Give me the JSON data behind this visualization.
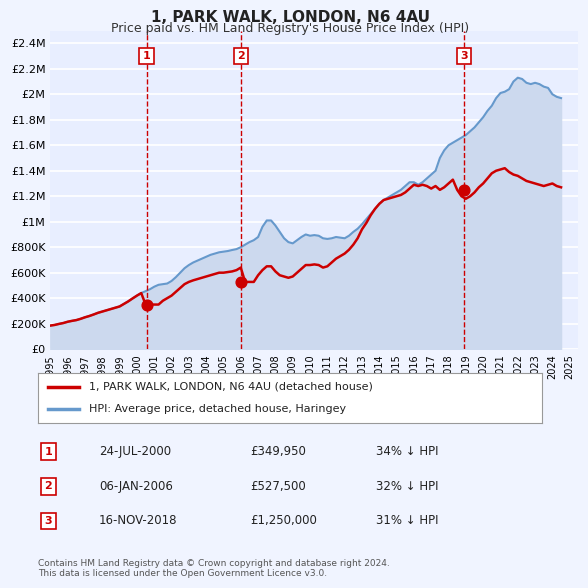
{
  "title": "1, PARK WALK, LONDON, N6 4AU",
  "subtitle": "Price paid vs. HM Land Registry's House Price Index (HPI)",
  "background_color": "#f0f4ff",
  "plot_bg_color": "#e8eeff",
  "grid_color": "#ffffff",
  "ylim": [
    0,
    2500000
  ],
  "yticks": [
    0,
    200000,
    400000,
    600000,
    800000,
    1000000,
    1200000,
    1400000,
    1600000,
    1800000,
    2000000,
    2200000,
    2400000
  ],
  "ytick_labels": [
    "£0",
    "£200K",
    "£400K",
    "£600K",
    "£800K",
    "£1M",
    "£1.2M",
    "£1.4M",
    "£1.6M",
    "£1.8M",
    "£2M",
    "£2.2M",
    "£2.4M"
  ],
  "xlim_start": 1995.5,
  "xlim_end": 2025.5,
  "sale_color": "#cc0000",
  "hpi_color": "#6699cc",
  "hpi_fill_color": "#ccd9ee",
  "sale_dates": [
    2000.558,
    2006.017,
    2018.879
  ],
  "sale_prices": [
    349950,
    527500,
    1250000
  ],
  "sale_labels": [
    "1",
    "2",
    "3"
  ],
  "vline_color": "#cc0000",
  "legend_label_sale": "1, PARK WALK, LONDON, N6 4AU (detached house)",
  "legend_label_hpi": "HPI: Average price, detached house, Haringey",
  "table_entries": [
    {
      "num": "1",
      "date": "24-JUL-2000",
      "price": "£349,950",
      "pct": "34% ↓ HPI"
    },
    {
      "num": "2",
      "date": "06-JAN-2006",
      "price": "£527,500",
      "pct": "32% ↓ HPI"
    },
    {
      "num": "3",
      "date": "16-NOV-2018",
      "price": "£1,250,000",
      "pct": "31% ↓ HPI"
    }
  ],
  "footnote": "Contains HM Land Registry data © Crown copyright and database right 2024.\nThis data is licensed under the Open Government Licence v3.0.",
  "hpi_years": [
    1995,
    1995.25,
    1995.5,
    1995.75,
    1996,
    1996.25,
    1996.5,
    1996.75,
    1997,
    1997.25,
    1997.5,
    1997.75,
    1998,
    1998.25,
    1998.5,
    1998.75,
    1999,
    1999.25,
    1999.5,
    1999.75,
    2000,
    2000.25,
    2000.5,
    2000.75,
    2001,
    2001.25,
    2001.5,
    2001.75,
    2002,
    2002.25,
    2002.5,
    2002.75,
    2003,
    2003.25,
    2003.5,
    2003.75,
    2004,
    2004.25,
    2004.5,
    2004.75,
    2005,
    2005.25,
    2005.5,
    2005.75,
    2006,
    2006.25,
    2006.5,
    2006.75,
    2007,
    2007.25,
    2007.5,
    2007.75,
    2008,
    2008.25,
    2008.5,
    2008.75,
    2009,
    2009.25,
    2009.5,
    2009.75,
    2010,
    2010.25,
    2010.5,
    2010.75,
    2011,
    2011.25,
    2011.5,
    2011.75,
    2012,
    2012.25,
    2012.5,
    2012.75,
    2013,
    2013.25,
    2013.5,
    2013.75,
    2014,
    2014.25,
    2014.5,
    2014.75,
    2015,
    2015.25,
    2015.5,
    2015.75,
    2016,
    2016.25,
    2016.5,
    2016.75,
    2017,
    2017.25,
    2017.5,
    2017.75,
    2018,
    2018.25,
    2018.5,
    2018.75,
    2019,
    2019.25,
    2019.5,
    2019.75,
    2020,
    2020.25,
    2020.5,
    2020.75,
    2021,
    2021.25,
    2021.5,
    2021.75,
    2022,
    2022.25,
    2022.5,
    2022.75,
    2023,
    2023.25,
    2023.5,
    2023.75,
    2024,
    2024.25,
    2024.5
  ],
  "hpi_values": [
    185000,
    190000,
    198000,
    205000,
    215000,
    222000,
    228000,
    238000,
    250000,
    260000,
    272000,
    285000,
    295000,
    305000,
    315000,
    325000,
    335000,
    355000,
    375000,
    398000,
    420000,
    440000,
    455000,
    470000,
    490000,
    505000,
    510000,
    515000,
    535000,
    565000,
    600000,
    635000,
    660000,
    680000,
    695000,
    710000,
    725000,
    740000,
    750000,
    760000,
    765000,
    770000,
    778000,
    785000,
    800000,
    820000,
    840000,
    855000,
    880000,
    960000,
    1010000,
    1010000,
    970000,
    920000,
    870000,
    840000,
    830000,
    855000,
    880000,
    900000,
    890000,
    895000,
    890000,
    870000,
    865000,
    870000,
    880000,
    875000,
    870000,
    890000,
    920000,
    945000,
    980000,
    1020000,
    1060000,
    1100000,
    1140000,
    1170000,
    1190000,
    1210000,
    1230000,
    1250000,
    1280000,
    1310000,
    1310000,
    1290000,
    1310000,
    1340000,
    1370000,
    1400000,
    1500000,
    1560000,
    1600000,
    1620000,
    1640000,
    1660000,
    1680000,
    1710000,
    1740000,
    1780000,
    1820000,
    1870000,
    1910000,
    1970000,
    2010000,
    2020000,
    2040000,
    2100000,
    2130000,
    2120000,
    2090000,
    2080000,
    2090000,
    2080000,
    2060000,
    2050000,
    2000000,
    1980000,
    1970000
  ],
  "sale_hpi_years": [
    1995,
    1995.25,
    1995.5,
    1995.75,
    1996,
    1996.25,
    1996.5,
    1996.75,
    1997,
    1997.25,
    1997.5,
    1997.75,
    1998,
    1998.25,
    1998.5,
    1998.75,
    1999,
    1999.25,
    1999.5,
    1999.75,
    2000,
    2000.25,
    2000.5,
    2000.75,
    2001,
    2001.25,
    2001.5,
    2001.75,
    2002,
    2002.25,
    2002.5,
    2002.75,
    2003,
    2003.25,
    2003.5,
    2003.75,
    2004,
    2004.25,
    2004.5,
    2004.75,
    2005,
    2005.25,
    2005.5,
    2005.75,
    2006,
    2006.25,
    2006.5,
    2006.75,
    2007,
    2007.25,
    2007.5,
    2007.75,
    2008,
    2008.25,
    2008.5,
    2008.75,
    2009,
    2009.25,
    2009.5,
    2009.75,
    2010,
    2010.25,
    2010.5,
    2010.75,
    2011,
    2011.25,
    2011.5,
    2011.75,
    2012,
    2012.25,
    2012.5,
    2012.75,
    2013,
    2013.25,
    2013.5,
    2013.75,
    2014,
    2014.25,
    2014.5,
    2014.75,
    2015,
    2015.25,
    2015.5,
    2015.75,
    2016,
    2016.25,
    2016.5,
    2016.75,
    2017,
    2017.25,
    2017.5,
    2017.75,
    2018,
    2018.25,
    2018.5,
    2018.75,
    2019,
    2019.25,
    2019.5,
    2019.75,
    2020,
    2020.25,
    2020.5,
    2020.75,
    2021,
    2021.25,
    2021.5,
    2021.75,
    2022,
    2022.25,
    2022.5,
    2022.75,
    2023,
    2023.25,
    2023.5,
    2023.75,
    2024,
    2024.25,
    2024.5
  ],
  "sale_line_values": [
    185000,
    190000,
    198000,
    205000,
    215000,
    222000,
    228000,
    238000,
    250000,
    260000,
    272000,
    285000,
    295000,
    305000,
    315000,
    325000,
    335000,
    355000,
    375000,
    398000,
    420000,
    440000,
    349950,
    349950,
    349950,
    349950,
    380000,
    400000,
    420000,
    450000,
    480000,
    510000,
    527500,
    540000,
    550000,
    560000,
    570000,
    580000,
    590000,
    600000,
    600000,
    605000,
    610000,
    620000,
    640000,
    527500,
    527500,
    527500,
    580000,
    620000,
    650000,
    650000,
    610000,
    580000,
    570000,
    560000,
    570000,
    600000,
    630000,
    660000,
    660000,
    665000,
    660000,
    640000,
    650000,
    680000,
    710000,
    730000,
    750000,
    780000,
    820000,
    870000,
    940000,
    990000,
    1050000,
    1100000,
    1140000,
    1170000,
    1180000,
    1190000,
    1200000,
    1210000,
    1230000,
    1260000,
    1290000,
    1280000,
    1290000,
    1280000,
    1260000,
    1280000,
    1250000,
    1270000,
    1300000,
    1330000,
    1250000,
    1200000,
    1180000,
    1200000,
    1230000,
    1270000,
    1300000,
    1340000,
    1380000,
    1400000,
    1410000,
    1420000,
    1390000,
    1370000,
    1360000,
    1340000,
    1320000,
    1310000,
    1300000,
    1290000,
    1280000,
    1290000,
    1300000,
    1280000,
    1270000
  ]
}
